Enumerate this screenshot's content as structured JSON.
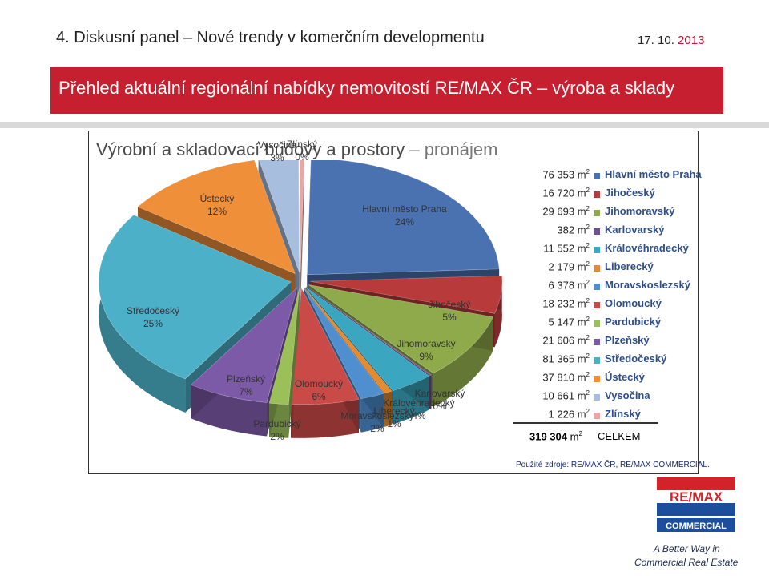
{
  "header": {
    "title": "4. Diskusní panel – Nové trendy v komerčním developmentu",
    "date_prefix": "17. 10. ",
    "date_year": "2013"
  },
  "banner": {
    "title": "Přehled aktuální regionální nabídky nemovitostí RE/MAX ČR – výroba a sklady"
  },
  "panel": {
    "title_main": "Výrobní a skladovací budovy a prostory",
    "title_dash": " – ",
    "title_light": "pronájem"
  },
  "chart_data": {
    "type": "pie",
    "title": "Výrobní a skladovací budovy a prostory – pronájem",
    "unit": "m2",
    "slices": [
      {
        "name": "Hlavní město Praha",
        "value": 76353,
        "pct_label": "24%",
        "color": "#4a72b0"
      },
      {
        "name": "Jihočeský",
        "value": 16720,
        "pct_label": "5%",
        "color": "#b83a3a"
      },
      {
        "name": "Jihomoravský",
        "value": 29693,
        "pct_label": "9%",
        "color": "#8faa4a"
      },
      {
        "name": "Karlovarský",
        "value": 382,
        "pct_label": "0%",
        "color": "#6f4f9a"
      },
      {
        "name": "Královéhradecký",
        "value": 11552,
        "pct_label": "4%",
        "color": "#3aa6c0"
      },
      {
        "name": "Liberecký",
        "value": 2179,
        "pct_label": "1%",
        "color": "#e58a2e"
      },
      {
        "name": "Moravskoslezský",
        "value": 6378,
        "pct_label": "2%",
        "color": "#4f8fd0"
      },
      {
        "name": "Olomoucký",
        "value": 18232,
        "pct_label": "6%",
        "color": "#c94a47"
      },
      {
        "name": "Pardubický",
        "value": 5147,
        "pct_label": "2%",
        "color": "#9bc05a"
      },
      {
        "name": "Plzeňský",
        "value": 21606,
        "pct_label": "7%",
        "color": "#7d5aa8"
      },
      {
        "name": "Středočeský",
        "value": 81365,
        "pct_label": "25%",
        "color": "#4cb1c8"
      },
      {
        "name": "Ústecký",
        "value": 37810,
        "pct_label": "12%",
        "color": "#f08f3a"
      },
      {
        "name": "Vysočina",
        "value": 10661,
        "pct_label": "3%",
        "color": "#a8bede"
      },
      {
        "name": "Zlínský",
        "value": 1226,
        "pct_label": "0%",
        "color": "#eba6a4"
      }
    ],
    "total": {
      "value_label": "319 304",
      "unit": "m",
      "sup": "2",
      "name": "CELKEM"
    },
    "legend_position": "right"
  },
  "legend": {
    "unit": "m",
    "sup": "2",
    "rows": [
      {
        "value": "76 353",
        "name": "Hlavní město Praha",
        "color": "#4a72b0"
      },
      {
        "value": "16 720",
        "name": "Jihočeský",
        "color": "#b83a3a"
      },
      {
        "value": "29 693",
        "name": "Jihomoravský",
        "color": "#8faa4a"
      },
      {
        "value": "382",
        "name": "Karlovarský",
        "color": "#6f4f9a"
      },
      {
        "value": "11 552",
        "name": "Královéhradecký",
        "color": "#3aa6c0"
      },
      {
        "value": "2 179",
        "name": "Liberecký",
        "color": "#e58a2e"
      },
      {
        "value": "6 378",
        "name": "Moravskoslezský",
        "color": "#4f8fd0"
      },
      {
        "value": "18 232",
        "name": "Olomoucký",
        "color": "#c94a47"
      },
      {
        "value": "5 147",
        "name": "Pardubický",
        "color": "#9bc05a"
      },
      {
        "value": "21 606",
        "name": "Plzeňský",
        "color": "#7d5aa8"
      },
      {
        "value": "81 365",
        "name": "Středočeský",
        "color": "#4cb1c8"
      },
      {
        "value": "37 810",
        "name": "Ústecký",
        "color": "#f08f3a"
      },
      {
        "value": "10 661",
        "name": "Vysočina",
        "color": "#a8bede"
      },
      {
        "value": "1 226",
        "name": "Zlínský",
        "color": "#eba6a4"
      }
    ]
  },
  "source": "Použité zdroje: RE/MAX ČR, RE/MAX COMMERCIAL.",
  "logo": {
    "brand": "RE/MAX",
    "sub": "COMMERCIAL",
    "tagline1": "A Better Way in",
    "tagline2": "Commercial Real Estate"
  }
}
